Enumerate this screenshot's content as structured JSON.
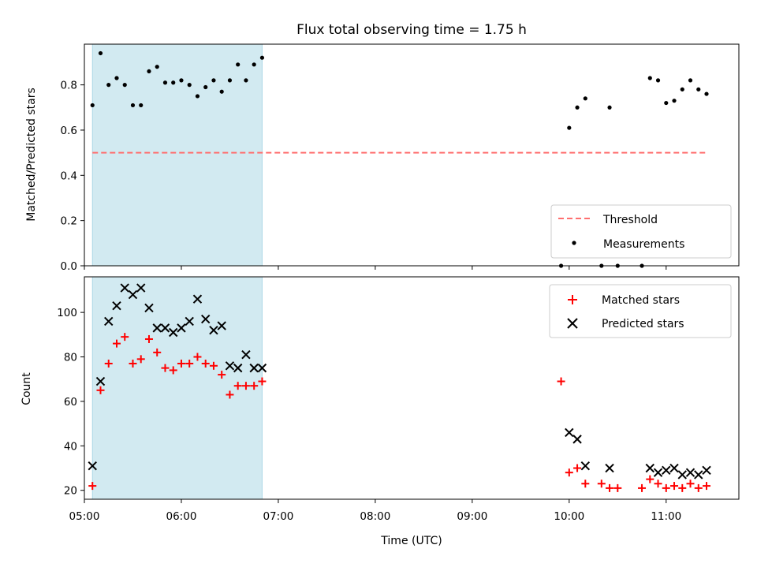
{
  "title": "Flux total observing time = 1.75 h",
  "colors": {
    "shade": "#add8e6",
    "threshold": "#ff6f6f",
    "measurement": "#000000",
    "matched": "#ff0000",
    "predicted": "#000000"
  },
  "chart_data": [
    {
      "type": "scatter",
      "ylabel": "Matched/Predicted stars",
      "xlim": [
        "05:00",
        "11:45"
      ],
      "ylim": [
        0,
        0.98
      ],
      "yticks": [
        "0.0",
        "0.2",
        "0.4",
        "0.6",
        "0.8"
      ],
      "shaded_span": [
        "05:05",
        "06:50"
      ],
      "legend_position": "lower right",
      "series": [
        {
          "name": "Threshold",
          "style": "dashed line",
          "points": [
            [
              "05:05",
              0.5
            ],
            [
              "11:25",
              0.5
            ]
          ]
        },
        {
          "name": "Measurements",
          "style": "dot",
          "points": [
            [
              "05:05",
              0.71
            ],
            [
              "05:10",
              0.94
            ],
            [
              "05:15",
              0.8
            ],
            [
              "05:20",
              0.83
            ],
            [
              "05:25",
              0.8
            ],
            [
              "05:30",
              0.71
            ],
            [
              "05:35",
              0.71
            ],
            [
              "05:40",
              0.86
            ],
            [
              "05:45",
              0.88
            ],
            [
              "05:50",
              0.81
            ],
            [
              "05:55",
              0.81
            ],
            [
              "06:00",
              0.82
            ],
            [
              "06:05",
              0.8
            ],
            [
              "06:10",
              0.75
            ],
            [
              "06:15",
              0.79
            ],
            [
              "06:20",
              0.82
            ],
            [
              "06:25",
              0.77
            ],
            [
              "06:30",
              0.82
            ],
            [
              "06:35",
              0.89
            ],
            [
              "06:40",
              0.82
            ],
            [
              "06:45",
              0.89
            ],
            [
              "06:50",
              0.92
            ],
            [
              "09:55",
              0.0
            ],
            [
              "10:00",
              0.61
            ],
            [
              "10:05",
              0.7
            ],
            [
              "10:10",
              0.74
            ],
            [
              "10:20",
              0.0
            ],
            [
              "10:25",
              0.7
            ],
            [
              "10:30",
              0.0
            ],
            [
              "10:45",
              0.0
            ],
            [
              "10:50",
              0.83
            ],
            [
              "10:55",
              0.82
            ],
            [
              "11:00",
              0.72
            ],
            [
              "11:05",
              0.73
            ],
            [
              "11:10",
              0.78
            ],
            [
              "11:15",
              0.82
            ],
            [
              "11:20",
              0.78
            ],
            [
              "11:25",
              0.76
            ]
          ]
        }
      ]
    },
    {
      "type": "scatter",
      "ylabel": "Count",
      "xlabel": "Time (UTC)",
      "xlim": [
        "05:00",
        "11:45"
      ],
      "ylim": [
        16,
        116
      ],
      "yticks": [
        "20",
        "40",
        "60",
        "80",
        "100"
      ],
      "xticks": [
        "05:00",
        "06:00",
        "07:00",
        "08:00",
        "09:00",
        "10:00",
        "11:00"
      ],
      "shaded_span": [
        "05:05",
        "06:50"
      ],
      "legend_position": "upper right",
      "series": [
        {
          "name": "Matched stars",
          "marker": "+",
          "points": [
            [
              "05:05",
              22
            ],
            [
              "05:10",
              65
            ],
            [
              "05:15",
              77
            ],
            [
              "05:20",
              86
            ],
            [
              "05:25",
              89
            ],
            [
              "05:30",
              77
            ],
            [
              "05:35",
              79
            ],
            [
              "05:40",
              88
            ],
            [
              "05:45",
              82
            ],
            [
              "05:50",
              75
            ],
            [
              "05:55",
              74
            ],
            [
              "06:00",
              77
            ],
            [
              "06:05",
              77
            ],
            [
              "06:10",
              80
            ],
            [
              "06:15",
              77
            ],
            [
              "06:20",
              76
            ],
            [
              "06:25",
              72
            ],
            [
              "06:30",
              63
            ],
            [
              "06:35",
              67
            ],
            [
              "06:40",
              67
            ],
            [
              "06:45",
              67
            ],
            [
              "06:50",
              69
            ],
            [
              "09:55",
              69
            ],
            [
              "10:00",
              28
            ],
            [
              "10:05",
              30
            ],
            [
              "10:10",
              23
            ],
            [
              "10:20",
              23
            ],
            [
              "10:25",
              21
            ],
            [
              "10:30",
              21
            ],
            [
              "10:45",
              21
            ],
            [
              "10:50",
              25
            ],
            [
              "10:55",
              23
            ],
            [
              "11:00",
              21
            ],
            [
              "11:05",
              22
            ],
            [
              "11:10",
              21
            ],
            [
              "11:15",
              23
            ],
            [
              "11:20",
              21
            ],
            [
              "11:25",
              22
            ]
          ]
        },
        {
          "name": "Predicted stars",
          "marker": "x",
          "points": [
            [
              "05:05",
              31
            ],
            [
              "05:10",
              69
            ],
            [
              "05:15",
              96
            ],
            [
              "05:20",
              103
            ],
            [
              "05:25",
              111
            ],
            [
              "05:30",
              108
            ],
            [
              "05:35",
              111
            ],
            [
              "05:40",
              102
            ],
            [
              "05:45",
              93
            ],
            [
              "05:50",
              93
            ],
            [
              "05:55",
              91
            ],
            [
              "06:00",
              93
            ],
            [
              "06:05",
              96
            ],
            [
              "06:10",
              106
            ],
            [
              "06:15",
              97
            ],
            [
              "06:20",
              92
            ],
            [
              "06:25",
              94
            ],
            [
              "06:30",
              76
            ],
            [
              "06:35",
              75
            ],
            [
              "06:40",
              81
            ],
            [
              "06:45",
              75
            ],
            [
              "06:50",
              75
            ],
            [
              "10:00",
              46
            ],
            [
              "10:05",
              43
            ],
            [
              "10:10",
              31
            ],
            [
              "10:25",
              30
            ],
            [
              "10:50",
              30
            ],
            [
              "10:55",
              28
            ],
            [
              "11:00",
              29
            ],
            [
              "11:05",
              30
            ],
            [
              "11:10",
              27
            ],
            [
              "11:15",
              28
            ],
            [
              "11:20",
              27
            ],
            [
              "11:25",
              29
            ]
          ]
        }
      ]
    }
  ]
}
